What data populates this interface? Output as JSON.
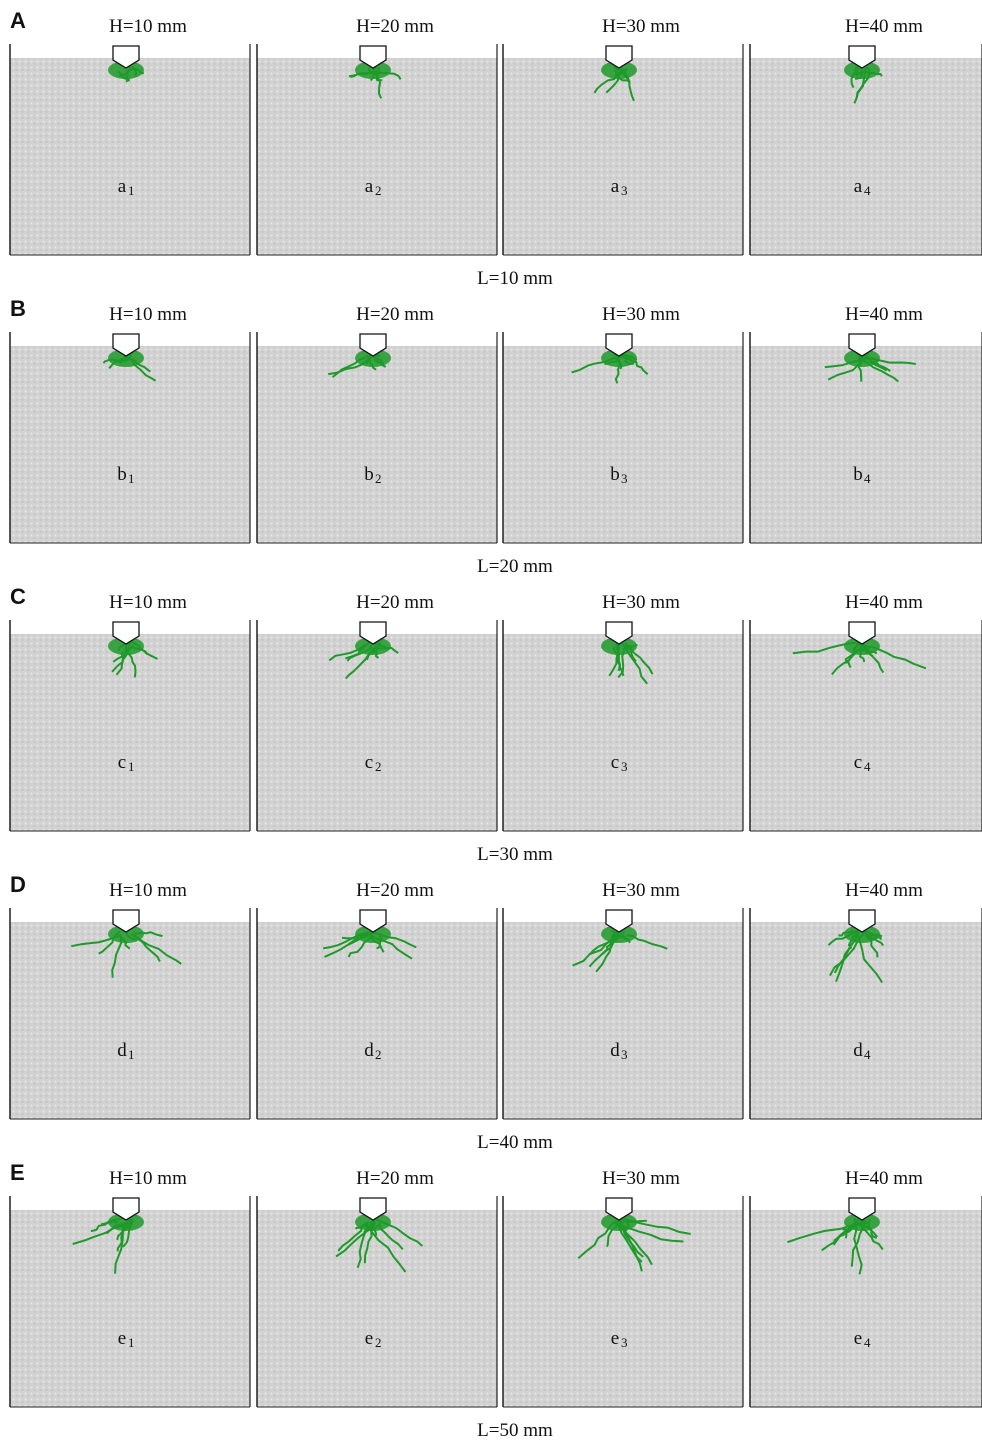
{
  "rows": [
    {
      "letter": "A",
      "footer": "L=10 mm",
      "panels": [
        {
          "header": "H=10 mm",
          "label": "a",
          "sub": "1"
        },
        {
          "header": "H=20 mm",
          "label": "a",
          "sub": "2"
        },
        {
          "header": "H=30 mm",
          "label": "a",
          "sub": "3"
        },
        {
          "header": "H=40 mm",
          "label": "a",
          "sub": "4"
        }
      ]
    },
    {
      "letter": "B",
      "footer": "L=20 mm",
      "panels": [
        {
          "header": "H=10 mm",
          "label": "b",
          "sub": "1"
        },
        {
          "header": "H=20 mm",
          "label": "b",
          "sub": "2"
        },
        {
          "header": "H=30 mm",
          "label": "b",
          "sub": "3"
        },
        {
          "header": "H=40 mm",
          "label": "b",
          "sub": "4"
        }
      ]
    },
    {
      "letter": "C",
      "footer": "L=30 mm",
      "panels": [
        {
          "header": "H=10 mm",
          "label": "c",
          "sub": "1"
        },
        {
          "header": "H=20 mm",
          "label": "c",
          "sub": "2"
        },
        {
          "header": "H=30 mm",
          "label": "c",
          "sub": "3"
        },
        {
          "header": "H=40 mm",
          "label": "c",
          "sub": "4"
        }
      ]
    },
    {
      "letter": "D",
      "footer": "L=40 mm",
      "panels": [
        {
          "header": "H=10 mm",
          "label": "d",
          "sub": "1"
        },
        {
          "header": "H=20 mm",
          "label": "d",
          "sub": "2"
        },
        {
          "header": "H=30 mm",
          "label": "d",
          "sub": "3"
        },
        {
          "header": "H=40 mm",
          "label": "d",
          "sub": "4"
        }
      ]
    },
    {
      "letter": "E",
      "footer": "L=50 mm",
      "panels": [
        {
          "header": "H=10 mm",
          "label": "e",
          "sub": "1"
        },
        {
          "header": "H=20 mm",
          "label": "e",
          "sub": "2"
        },
        {
          "header": "H=30 mm",
          "label": "e",
          "sub": "3"
        },
        {
          "header": "H=40 mm",
          "label": "e",
          "sub": "4"
        }
      ]
    }
  ]
}
